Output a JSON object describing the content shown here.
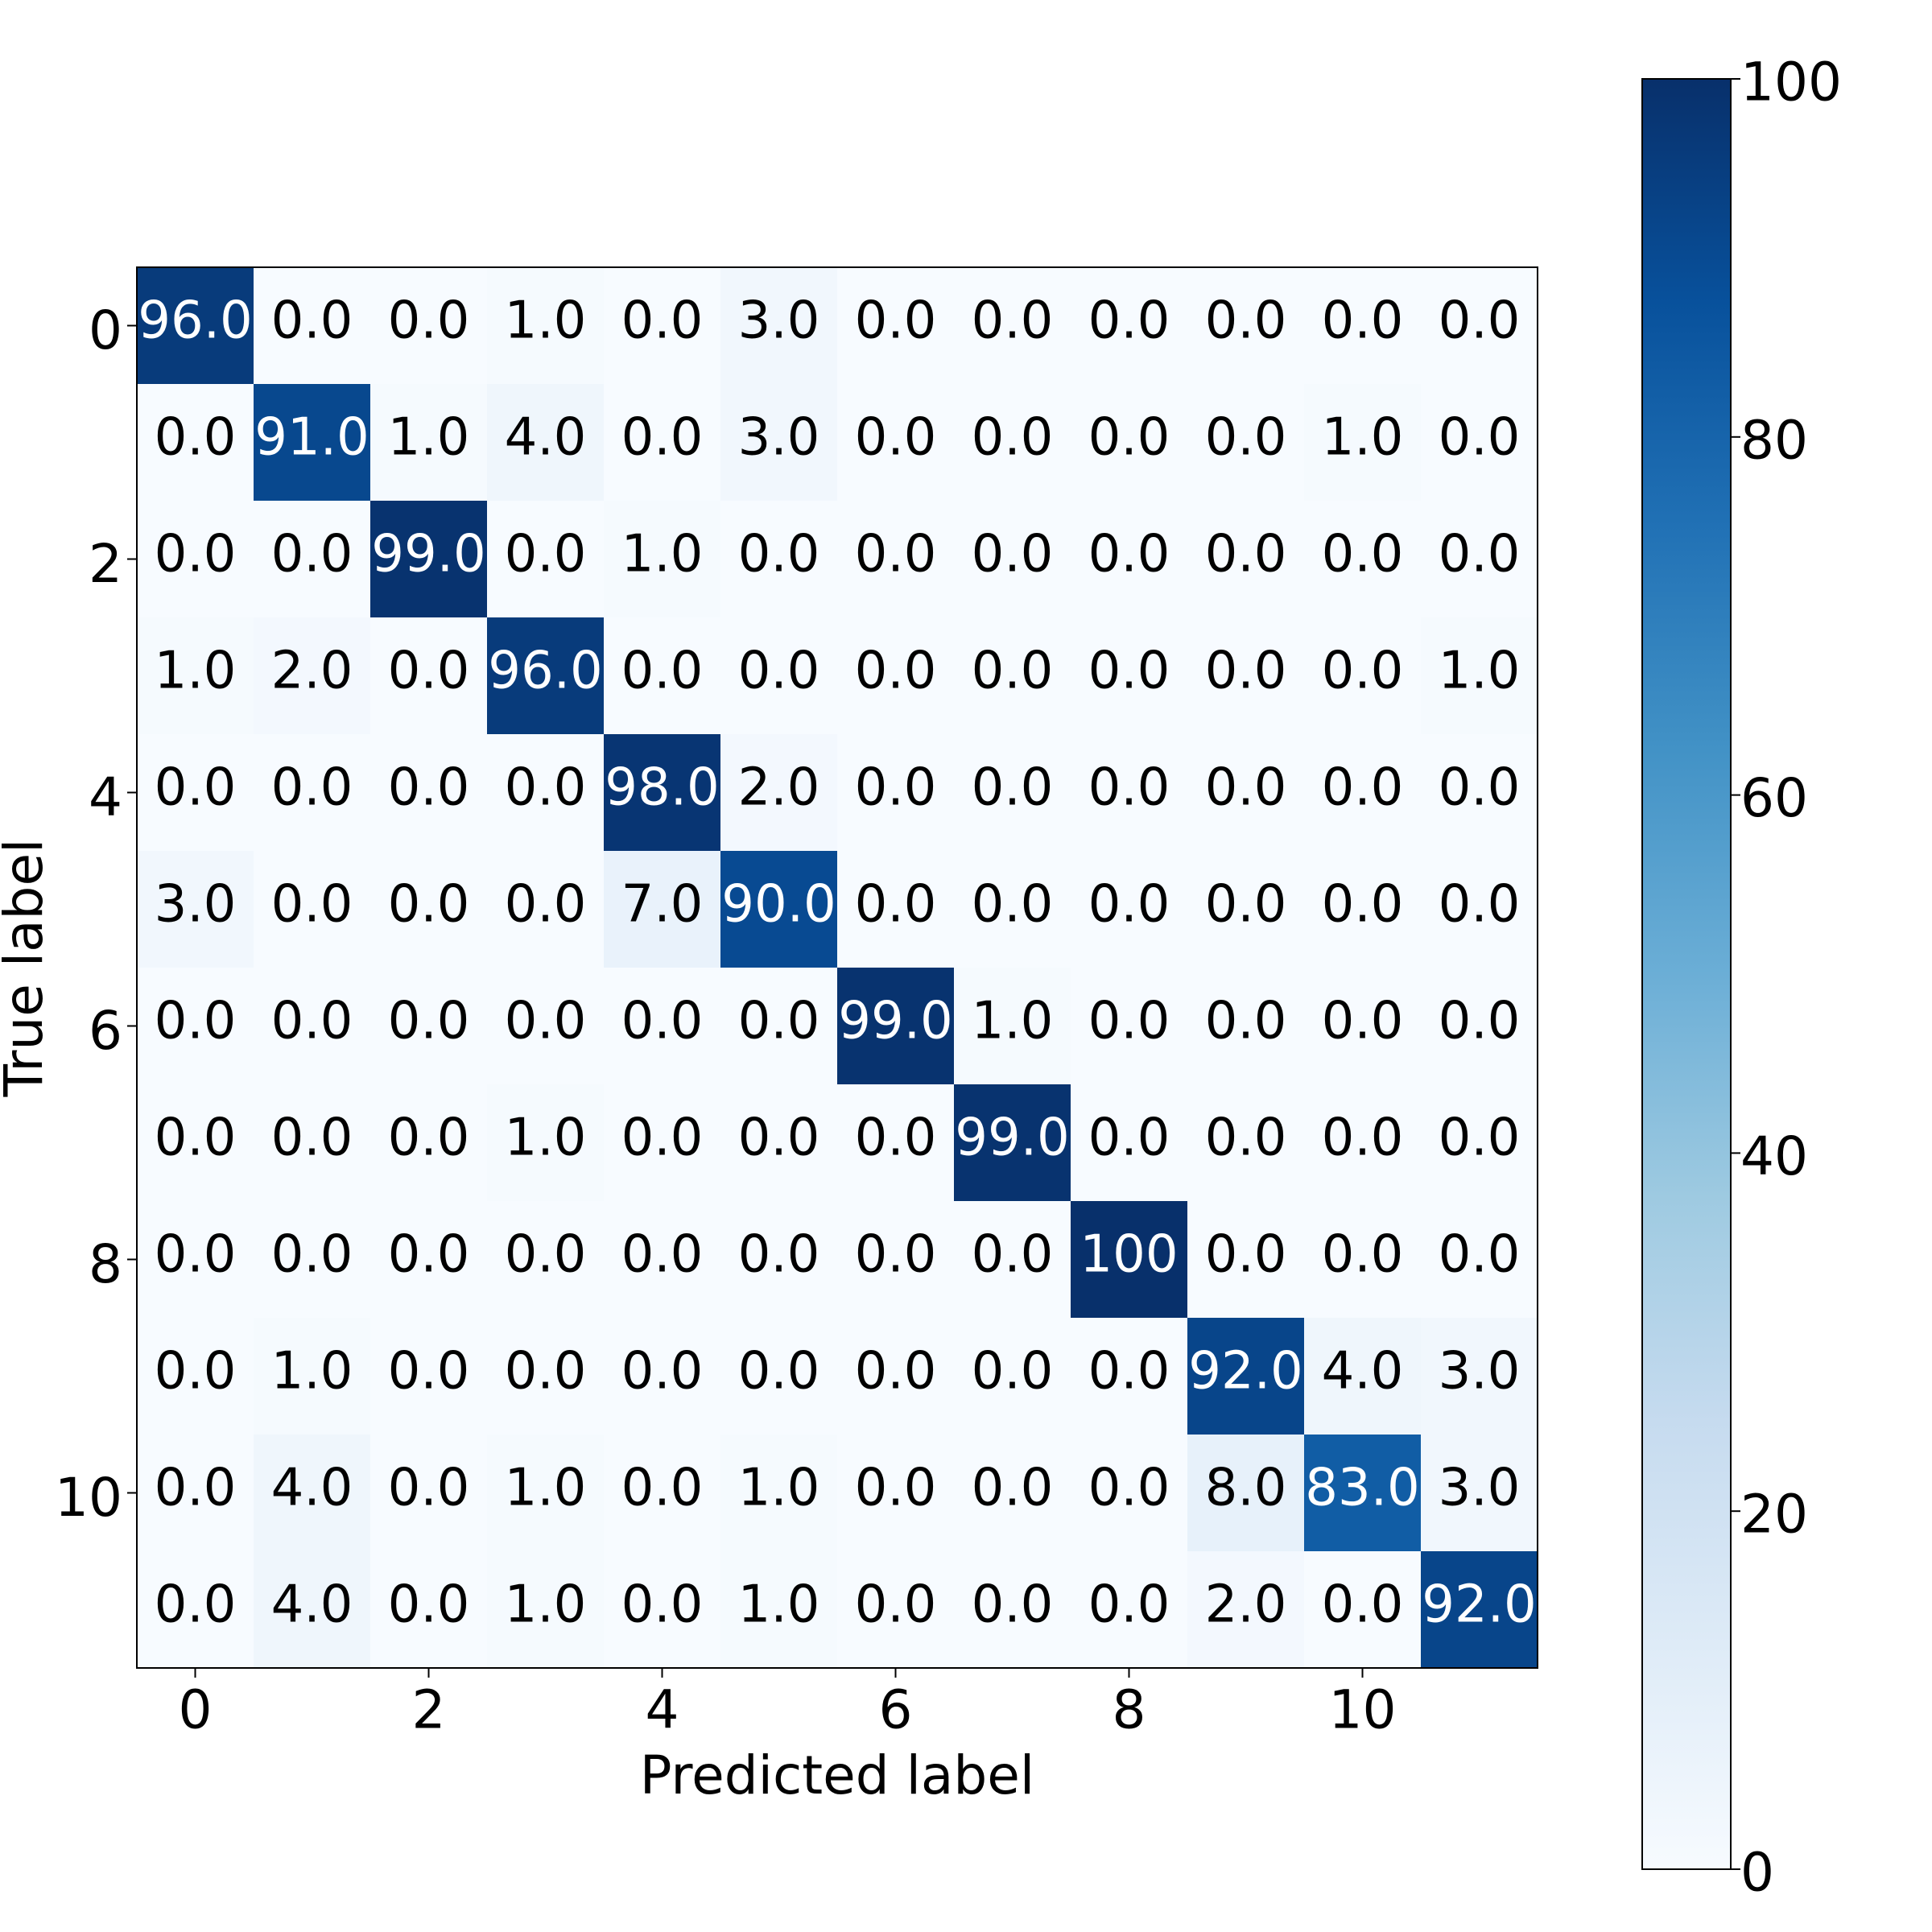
{
  "chart_data": {
    "type": "heatmap",
    "xlabel": "Predicted label",
    "ylabel": "True label",
    "x_tick_labels": [
      "0",
      "2",
      "4",
      "6",
      "8",
      "10"
    ],
    "y_tick_labels": [
      "0",
      "2",
      "4",
      "6",
      "8",
      "10"
    ],
    "x_tick_indices": [
      0,
      2,
      4,
      6,
      8,
      10
    ],
    "y_tick_indices": [
      0,
      2,
      4,
      6,
      8,
      10
    ],
    "colormap": "Blues",
    "value_range": [
      0,
      100
    ],
    "colorbar": {
      "ticks": [
        0,
        20,
        40,
        60,
        80,
        100
      ],
      "tick_labels": [
        "0",
        "20",
        "40",
        "60",
        "80",
        "100"
      ]
    },
    "cell_labels": [
      [
        "96.0",
        "0.0",
        "0.0",
        "1.0",
        "0.0",
        "3.0",
        "0.0",
        "0.0",
        "0.0",
        "0.0",
        "0.0",
        "0.0"
      ],
      [
        "0.0",
        "91.0",
        "1.0",
        "4.0",
        "0.0",
        "3.0",
        "0.0",
        "0.0",
        "0.0",
        "0.0",
        "1.0",
        "0.0"
      ],
      [
        "0.0",
        "0.0",
        "99.0",
        "0.0",
        "1.0",
        "0.0",
        "0.0",
        "0.0",
        "0.0",
        "0.0",
        "0.0",
        "0.0"
      ],
      [
        "1.0",
        "2.0",
        "0.0",
        "96.0",
        "0.0",
        "0.0",
        "0.0",
        "0.0",
        "0.0",
        "0.0",
        "0.0",
        "1.0"
      ],
      [
        "0.0",
        "0.0",
        "0.0",
        "0.0",
        "98.0",
        "2.0",
        "0.0",
        "0.0",
        "0.0",
        "0.0",
        "0.0",
        "0.0"
      ],
      [
        "3.0",
        "0.0",
        "0.0",
        "0.0",
        "7.0",
        "90.0",
        "0.0",
        "0.0",
        "0.0",
        "0.0",
        "0.0",
        "0.0"
      ],
      [
        "0.0",
        "0.0",
        "0.0",
        "0.0",
        "0.0",
        "0.0",
        "99.0",
        "1.0",
        "0.0",
        "0.0",
        "0.0",
        "0.0"
      ],
      [
        "0.0",
        "0.0",
        "0.0",
        "1.0",
        "0.0",
        "0.0",
        "0.0",
        "99.0",
        "0.0",
        "0.0",
        "0.0",
        "0.0"
      ],
      [
        "0.0",
        "0.0",
        "0.0",
        "0.0",
        "0.0",
        "0.0",
        "0.0",
        "0.0",
        "100",
        "0.0",
        "0.0",
        "0.0"
      ],
      [
        "0.0",
        "1.0",
        "0.0",
        "0.0",
        "0.0",
        "0.0",
        "0.0",
        "0.0",
        "0.0",
        "92.0",
        "4.0",
        "3.0"
      ],
      [
        "0.0",
        "4.0",
        "0.0",
        "1.0",
        "0.0",
        "1.0",
        "0.0",
        "0.0",
        "0.0",
        "8.0",
        "83.0",
        "3.0"
      ],
      [
        "0.0",
        "4.0",
        "0.0",
        "1.0",
        "0.0",
        "1.0",
        "0.0",
        "0.0",
        "0.0",
        "2.0",
        "0.0",
        "92.0"
      ]
    ]
  }
}
